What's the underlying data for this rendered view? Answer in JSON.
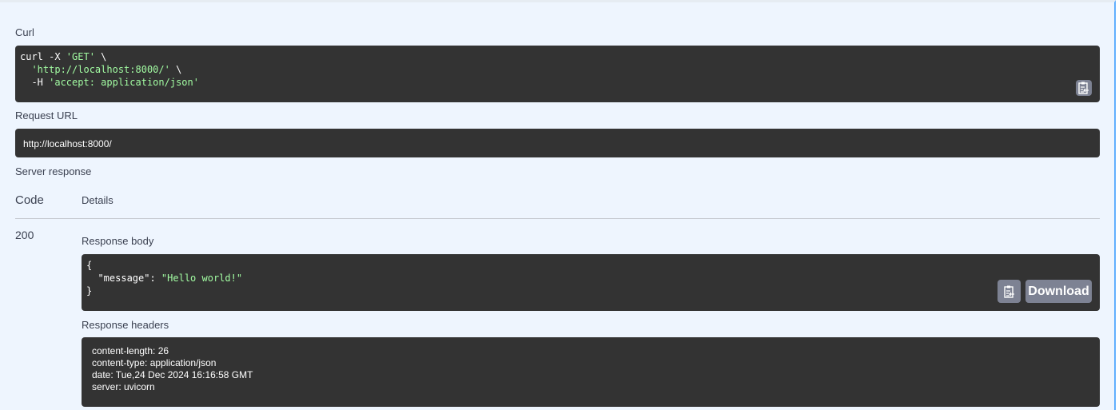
{
  "curl": {
    "label": "Curl",
    "line1_cmd": "curl -X ",
    "line1_method": "'GET'",
    "line1_end": " \\",
    "line2_url": "'http://localhost:8000/'",
    "line2_end": " \\",
    "line3_flag": "  -H ",
    "line3_header": "'accept: application/json'"
  },
  "request_url": {
    "label": "Request URL",
    "value": "http://localhost:8000/"
  },
  "server_response": {
    "label": "Server response",
    "col_code": "Code",
    "col_details": "Details",
    "code": "200",
    "body_label": "Response body",
    "body": {
      "open": "{",
      "key": "  \"message\": ",
      "value": "\"Hello world!\"",
      "close": "}"
    },
    "download_label": "Download",
    "headers_label": "Response headers",
    "headers": [
      "content-length: 26",
      "content-type: application/json",
      "date: Tue,24 Dec 2024 16:16:58 GMT",
      "server: uvicorn"
    ]
  },
  "colors": {
    "string": "#a2fca2",
    "code_bg": "#333333",
    "accent": "#61affe"
  }
}
